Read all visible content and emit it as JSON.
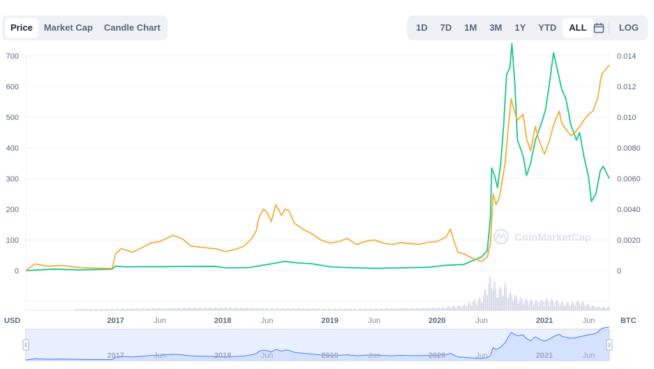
{
  "tabs": [
    "Price",
    "Market Cap",
    "Candle Chart"
  ],
  "active_tab": "Price",
  "ranges": [
    "1D",
    "7D",
    "1M",
    "3M",
    "1Y",
    "YTD",
    "ALL"
  ],
  "active_range": "ALL",
  "log_label": "LOG",
  "icons": {
    "calendar": "calendar-icon",
    "logo": "coinmarketcap-logo-icon"
  },
  "watermark": "CoinMarketCap",
  "colors": {
    "usd_line": "#f5ac37",
    "btc_line": "#16c784",
    "volume": "#cfd6e4",
    "navigator": "#4878ff"
  },
  "chart_data": {
    "type": "line",
    "x_start": "2016-03-01",
    "x_end": "2021-08-10",
    "x_ticks": [
      {
        "label": "2017",
        "date": "2017-01-01",
        "bold": true
      },
      {
        "label": "Jun",
        "date": "2017-06-01",
        "bold": false
      },
      {
        "label": "2018",
        "date": "2018-01-01",
        "bold": true
      },
      {
        "label": "Jun",
        "date": "2018-06-01",
        "bold": false
      },
      {
        "label": "2019",
        "date": "2019-01-01",
        "bold": true
      },
      {
        "label": "Jun",
        "date": "2019-06-01",
        "bold": false
      },
      {
        "label": "2020",
        "date": "2020-01-01",
        "bold": true
      },
      {
        "label": "Jun",
        "date": "2020-06-01",
        "bold": false
      },
      {
        "label": "2021",
        "date": "2021-01-01",
        "bold": true
      },
      {
        "label": "Jun",
        "date": "2021-06-01",
        "bold": false
      }
    ],
    "y_left": {
      "label": "USD",
      "ticks": [
        0,
        100,
        200,
        300,
        400,
        500,
        600,
        700
      ],
      "ylim": [
        0,
        700
      ]
    },
    "y_right": {
      "label": "BTC",
      "ticks": [
        "0",
        "0.0020",
        "0.0040",
        "0.0060",
        "0.0080",
        "0.010",
        "0.012",
        "0.014"
      ],
      "ylim": [
        0,
        0.014
      ]
    },
    "grid": true,
    "series": [
      {
        "axis": "left",
        "points": [
          [
            "2016-03-01",
            0
          ],
          [
            "2016-04-01",
            22
          ],
          [
            "2016-05-15",
            14
          ],
          [
            "2016-07-01",
            17
          ],
          [
            "2016-09-01",
            10
          ],
          [
            "2016-11-01",
            8
          ],
          [
            "2016-12-20",
            7
          ],
          [
            "2017-01-01",
            55
          ],
          [
            "2017-01-20",
            72
          ],
          [
            "2017-03-01",
            60
          ],
          [
            "2017-04-01",
            75
          ],
          [
            "2017-05-01",
            90
          ],
          [
            "2017-06-01",
            95
          ],
          [
            "2017-07-15",
            115
          ],
          [
            "2017-08-15",
            105
          ],
          [
            "2017-09-15",
            80
          ],
          [
            "2017-11-01",
            75
          ],
          [
            "2017-12-15",
            70
          ],
          [
            "2018-01-10",
            62
          ],
          [
            "2018-02-15",
            70
          ],
          [
            "2018-03-15",
            80
          ],
          [
            "2018-04-10",
            105
          ],
          [
            "2018-04-25",
            130
          ],
          [
            "2018-05-05",
            175
          ],
          [
            "2018-05-20",
            200
          ],
          [
            "2018-06-01",
            190
          ],
          [
            "2018-06-15",
            160
          ],
          [
            "2018-07-01",
            215
          ],
          [
            "2018-07-20",
            180
          ],
          [
            "2018-08-01",
            200
          ],
          [
            "2018-08-15",
            195
          ],
          [
            "2018-09-01",
            155
          ],
          [
            "2018-10-01",
            135
          ],
          [
            "2018-11-01",
            120
          ],
          [
            "2018-12-01",
            100
          ],
          [
            "2019-01-01",
            90
          ],
          [
            "2019-02-01",
            95
          ],
          [
            "2019-03-01",
            105
          ],
          [
            "2019-04-01",
            85
          ],
          [
            "2019-05-01",
            95
          ],
          [
            "2019-06-01",
            100
          ],
          [
            "2019-07-01",
            90
          ],
          [
            "2019-08-01",
            85
          ],
          [
            "2019-09-01",
            92
          ],
          [
            "2019-10-01",
            88
          ],
          [
            "2019-11-01",
            86
          ],
          [
            "2019-12-01",
            92
          ],
          [
            "2020-01-01",
            95
          ],
          [
            "2020-02-01",
            110
          ],
          [
            "2020-02-15",
            135
          ],
          [
            "2020-03-01",
            90
          ],
          [
            "2020-03-12",
            60
          ],
          [
            "2020-04-01",
            55
          ],
          [
            "2020-05-01",
            40
          ],
          [
            "2020-06-01",
            30
          ],
          [
            "2020-06-20",
            45
          ],
          [
            "2020-07-01",
            90
          ],
          [
            "2020-07-10",
            250
          ],
          [
            "2020-07-20",
            215
          ],
          [
            "2020-08-01",
            240
          ],
          [
            "2020-08-20",
            350
          ],
          [
            "2020-09-01",
            480
          ],
          [
            "2020-09-10",
            560
          ],
          [
            "2020-09-20",
            520
          ],
          [
            "2020-10-01",
            490
          ],
          [
            "2020-10-20",
            510
          ],
          [
            "2020-11-01",
            430
          ],
          [
            "2020-11-15",
            390
          ],
          [
            "2020-12-01",
            470
          ],
          [
            "2020-12-15",
            420
          ],
          [
            "2021-01-01",
            380
          ],
          [
            "2021-01-20",
            430
          ],
          [
            "2021-02-01",
            475
          ],
          [
            "2021-02-20",
            520
          ],
          [
            "2021-03-01",
            480
          ],
          [
            "2021-03-15",
            460
          ],
          [
            "2021-04-01",
            440
          ],
          [
            "2021-04-15",
            450
          ],
          [
            "2021-05-01",
            470
          ],
          [
            "2021-05-15",
            490
          ],
          [
            "2021-06-01",
            510
          ],
          [
            "2021-06-15",
            520
          ],
          [
            "2021-07-01",
            560
          ],
          [
            "2021-07-15",
            640
          ],
          [
            "2021-08-10",
            670
          ]
        ]
      },
      {
        "axis": "right",
        "points": [
          [
            "2016-03-01",
            0.0
          ],
          [
            "2016-06-01",
            0.0001
          ],
          [
            "2016-09-01",
            5e-05
          ],
          [
            "2016-12-20",
            0.0001
          ],
          [
            "2017-01-01",
            0.0003
          ],
          [
            "2017-02-01",
            0.00025
          ],
          [
            "2017-06-01",
            0.00026
          ],
          [
            "2017-12-01",
            0.00028
          ],
          [
            "2018-01-15",
            0.00018
          ],
          [
            "2018-04-01",
            0.0002
          ],
          [
            "2018-06-01",
            0.0004
          ],
          [
            "2018-08-01",
            0.0006
          ],
          [
            "2018-09-15",
            0.0005
          ],
          [
            "2018-11-01",
            0.00045
          ],
          [
            "2019-01-01",
            0.00025
          ],
          [
            "2019-03-01",
            0.0002
          ],
          [
            "2019-06-01",
            0.00015
          ],
          [
            "2019-09-01",
            0.00018
          ],
          [
            "2019-12-01",
            0.00022
          ],
          [
            "2020-02-01",
            0.00035
          ],
          [
            "2020-04-01",
            0.0004
          ],
          [
            "2020-06-01",
            0.0009
          ],
          [
            "2020-06-20",
            0.0013
          ],
          [
            "2020-07-01",
            0.0035
          ],
          [
            "2020-07-05",
            0.0067
          ],
          [
            "2020-07-15",
            0.0062
          ],
          [
            "2020-07-25",
            0.0054
          ],
          [
            "2020-08-05",
            0.007
          ],
          [
            "2020-08-15",
            0.0095
          ],
          [
            "2020-08-25",
            0.0128
          ],
          [
            "2020-09-05",
            0.0132
          ],
          [
            "2020-09-12",
            0.0148
          ],
          [
            "2020-09-22",
            0.0122
          ],
          [
            "2020-10-01",
            0.0085
          ],
          [
            "2020-10-20",
            0.0075
          ],
          [
            "2020-11-01",
            0.0062
          ],
          [
            "2020-11-15",
            0.007
          ],
          [
            "2020-12-01",
            0.0085
          ],
          [
            "2020-12-20",
            0.0095
          ],
          [
            "2021-01-05",
            0.0105
          ],
          [
            "2021-01-20",
            0.0125
          ],
          [
            "2021-02-01",
            0.0142
          ],
          [
            "2021-02-15",
            0.013
          ],
          [
            "2021-03-01",
            0.0118
          ],
          [
            "2021-03-15",
            0.0112
          ],
          [
            "2021-04-01",
            0.0095
          ],
          [
            "2021-04-20",
            0.0085
          ],
          [
            "2021-05-01",
            0.009
          ],
          [
            "2021-05-15",
            0.0075
          ],
          [
            "2021-06-01",
            0.006
          ],
          [
            "2021-06-10",
            0.0045
          ],
          [
            "2021-06-25",
            0.005
          ],
          [
            "2021-07-10",
            0.0065
          ],
          [
            "2021-07-20",
            0.0068
          ],
          [
            "2021-08-10",
            0.006
          ]
        ]
      }
    ],
    "volume": [
      [
        "2017-01-05",
        0.05
      ],
      [
        "2018-01-05",
        0.08
      ],
      [
        "2018-06-01",
        0.06
      ],
      [
        "2019-01-01",
        0.05
      ],
      [
        "2019-06-01",
        0.05
      ],
      [
        "2020-01-01",
        0.07
      ],
      [
        "2020-04-01",
        0.15
      ],
      [
        "2020-06-01",
        0.35
      ],
      [
        "2020-07-05",
        1.0
      ],
      [
        "2020-07-20",
        0.55
      ],
      [
        "2020-08-01",
        0.6
      ],
      [
        "2020-08-20",
        0.7
      ],
      [
        "2020-09-01",
        0.5
      ],
      [
        "2020-10-01",
        0.35
      ],
      [
        "2020-11-01",
        0.3
      ],
      [
        "2020-12-01",
        0.25
      ],
      [
        "2021-01-01",
        0.3
      ],
      [
        "2021-02-01",
        0.28
      ],
      [
        "2021-03-01",
        0.22
      ],
      [
        "2021-04-01",
        0.2
      ],
      [
        "2021-05-01",
        0.25
      ],
      [
        "2021-06-01",
        0.15
      ],
      [
        "2021-07-01",
        0.1
      ],
      [
        "2021-08-01",
        0.1
      ]
    ],
    "navigator": {
      "x_ticks": [
        "2017",
        "Jun",
        "2018",
        "Jun",
        "2019",
        "Jun",
        "2020",
        "Jun",
        "2021",
        "Jun"
      ]
    }
  }
}
